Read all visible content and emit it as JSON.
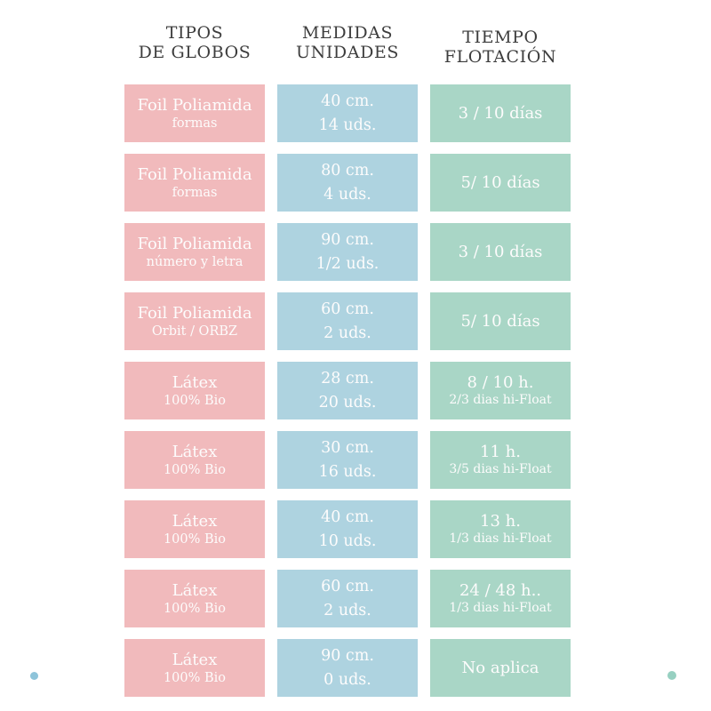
{
  "headers": [
    {
      "line1": "TIPOS",
      "line2": "DE GLOBOS"
    },
    {
      "line1": "MEDIDAS",
      "line2": "UNIDADES"
    },
    {
      "line1": "TIEMPO",
      "line2": "FLOTACIÓN"
    }
  ],
  "rows": [
    {
      "tipo": {
        "line1": "Foil Poliamida",
        "line2": "formas"
      },
      "medida": {
        "line1": "40 cm.",
        "line2": "14 uds."
      },
      "tiempo": {
        "line1": "3 / 10 días",
        "line2": ""
      }
    },
    {
      "tipo": {
        "line1": "Foil Poliamida",
        "line2": "formas"
      },
      "medida": {
        "line1": "80 cm.",
        "line2": "4 uds."
      },
      "tiempo": {
        "line1": "5/ 10 días",
        "line2": ""
      }
    },
    {
      "tipo": {
        "line1": "Foil Poliamida",
        "line2": "número y letra"
      },
      "medida": {
        "line1": "90 cm.",
        "line2": "1/2 uds."
      },
      "tiempo": {
        "line1": "3 / 10 días",
        "line2": ""
      }
    },
    {
      "tipo": {
        "line1": "Foil Poliamida",
        "line2": "Orbit / ORBZ"
      },
      "medida": {
        "line1": "60 cm.",
        "line2": "2 uds."
      },
      "tiempo": {
        "line1": "5/ 10 días",
        "line2": ""
      }
    },
    {
      "tipo": {
        "line1": "Látex",
        "line2": "100% Bio"
      },
      "medida": {
        "line1": "28 cm.",
        "line2": "20 uds."
      },
      "tiempo": {
        "line1": "8 / 10 h.",
        "line2": "2/3 dias hi-Float"
      }
    },
    {
      "tipo": {
        "line1": "Látex",
        "line2": "100% Bio"
      },
      "medida": {
        "line1": "30 cm.",
        "line2": "16 uds."
      },
      "tiempo": {
        "line1": "11 h.",
        "line2": "3/5 dias hi-Float"
      }
    },
    {
      "tipo": {
        "line1": "Látex",
        "line2": "100% Bio"
      },
      "medida": {
        "line1": "40 cm.",
        "line2": "10 uds."
      },
      "tiempo": {
        "line1": "13 h.",
        "line2": "1/3 dias hi-Float"
      }
    },
    {
      "tipo": {
        "line1": "Látex",
        "line2": "100% Bio"
      },
      "medida": {
        "line1": "60 cm.",
        "line2": "2 uds."
      },
      "tiempo": {
        "line1": "24 / 48 h..",
        "line2": "1/3 dias hi-Float"
      }
    },
    {
      "tipo": {
        "line1": "Látex",
        "line2": "100% Bio"
      },
      "medida": {
        "line1": "90 cm.",
        "line2": "0 uds."
      },
      "tiempo": {
        "line1": "No aplica",
        "line2": ""
      }
    }
  ],
  "colors": {
    "tipo_block": "#f1babc",
    "medida_block": "#aed3e0",
    "tiempo_block": "#a9d6c6",
    "cell_text": "#fdfcfc",
    "header_text": "#3d3d3d",
    "dot_left": "#8ec4da",
    "dot_right": "#97d0c1"
  },
  "chart_data": {
    "type": "table",
    "title": "",
    "columns": [
      "TIPOS DE GLOBOS",
      "MEDIDAS UNIDADES",
      "TIEMPO FLOTACIÓN"
    ],
    "rows": [
      [
        "Foil Poliamida formas",
        "40 cm. 14 uds.",
        "3 / 10 días"
      ],
      [
        "Foil Poliamida formas",
        "80 cm. 4 uds.",
        "5/ 10 días"
      ],
      [
        "Foil Poliamida número y letra",
        "90 cm. 1/2 uds.",
        "3 / 10 días"
      ],
      [
        "Foil Poliamida Orbit / ORBZ",
        "60 cm. 2 uds.",
        "5/ 10 días"
      ],
      [
        "Látex 100% Bio",
        "28 cm. 20 uds.",
        "8 / 10 h. 2/3 dias hi-Float"
      ],
      [
        "Látex 100% Bio",
        "30 cm. 16 uds.",
        "11 h. 3/5 dias hi-Float"
      ],
      [
        "Látex 100% Bio",
        "40 cm. 10 uds.",
        "13 h. 1/3 dias hi-Float"
      ],
      [
        "Látex 100% Bio",
        "60 cm. 2 uds.",
        "24 / 48 h.. 1/3 dias hi-Float"
      ],
      [
        "Látex 100% Bio",
        "90 cm. 0 uds.",
        "No aplica"
      ]
    ]
  }
}
